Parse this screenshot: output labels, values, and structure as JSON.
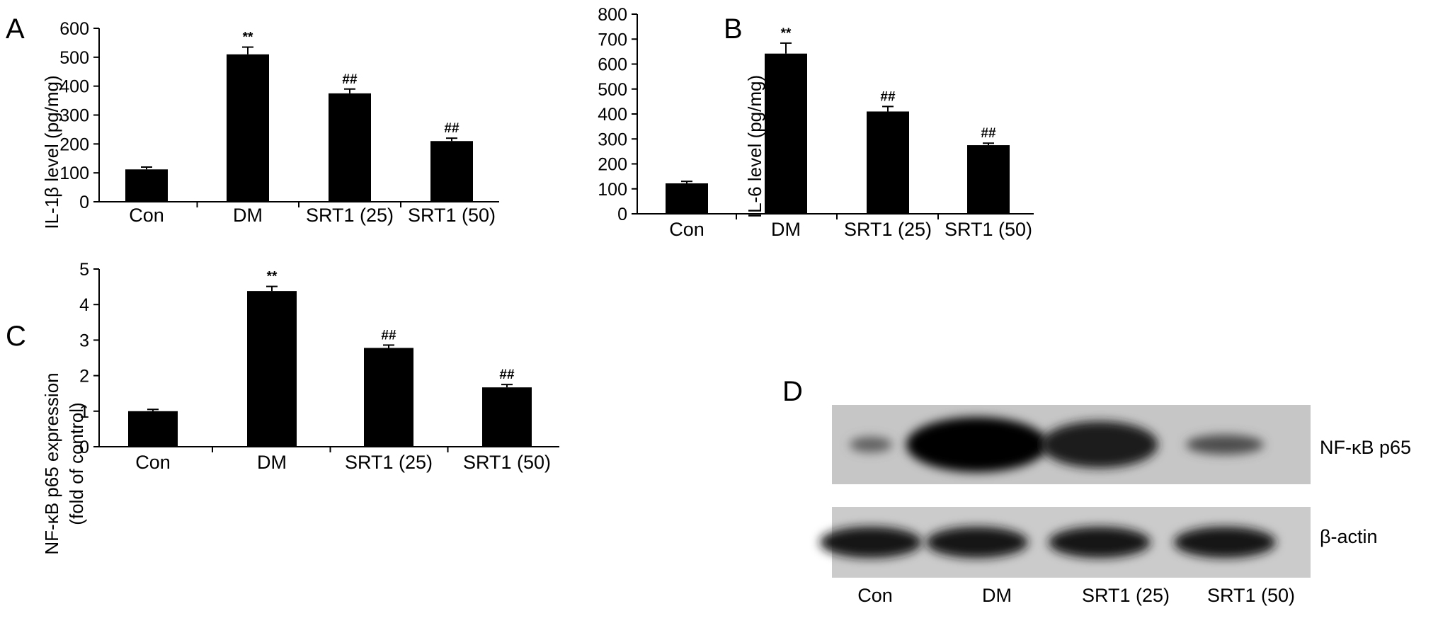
{
  "chart_data": [
    {
      "panel": "A",
      "type": "bar",
      "ylabel": "IL-1β level (pg/mg)",
      "categories": [
        "Con",
        "DM",
        "SRT1 (25)",
        "SRT1 (50)"
      ],
      "values": [
        112,
        510,
        375,
        210
      ],
      "errors": [
        8,
        25,
        15,
        10
      ],
      "annotations": [
        "",
        "**",
        "##",
        "##"
      ],
      "ylim": [
        0,
        600
      ],
      "yticks": [
        0,
        100,
        200,
        300,
        400,
        500,
        600
      ]
    },
    {
      "panel": "B",
      "type": "bar",
      "ylabel": "IL-6 level (pg/mg)",
      "categories": [
        "Con",
        "DM",
        "SRT1 (25)",
        "SRT1 (50)"
      ],
      "values": [
        122,
        642,
        410,
        275
      ],
      "errors": [
        8,
        42,
        20,
        8
      ],
      "annotations": [
        "",
        "**",
        "##",
        "##"
      ],
      "ylim": [
        0,
        800
      ],
      "yticks": [
        0,
        100,
        200,
        300,
        400,
        500,
        600,
        700,
        800
      ]
    },
    {
      "panel": "C",
      "type": "bar",
      "ylabel": "NF-κB p65 expression",
      "ylabel2": "(fold of control)",
      "categories": [
        "Con",
        "DM",
        "SRT1 (25)",
        "SRT1 (50)"
      ],
      "values": [
        1.0,
        4.38,
        2.78,
        1.67
      ],
      "errors": [
        0.05,
        0.13,
        0.08,
        0.08
      ],
      "annotations": [
        "",
        "**",
        "##",
        "##"
      ],
      "ylim": [
        0,
        5
      ],
      "yticks": [
        0,
        1,
        2,
        3,
        4,
        5
      ]
    }
  ],
  "blot": {
    "panel": "D",
    "band_labels": [
      "NF-κB p65",
      "β-actin"
    ],
    "lanes": [
      "Con",
      "DM",
      "SRT1 (25)",
      "SRT1 (50)"
    ],
    "p65_intensity": [
      0.2,
      1.0,
      0.75,
      0.35
    ],
    "actin_intensity": [
      0.85,
      0.85,
      0.85,
      0.85
    ],
    "colors": {
      "bar": "#000000",
      "blot_bg": "#c9c9c9"
    }
  }
}
